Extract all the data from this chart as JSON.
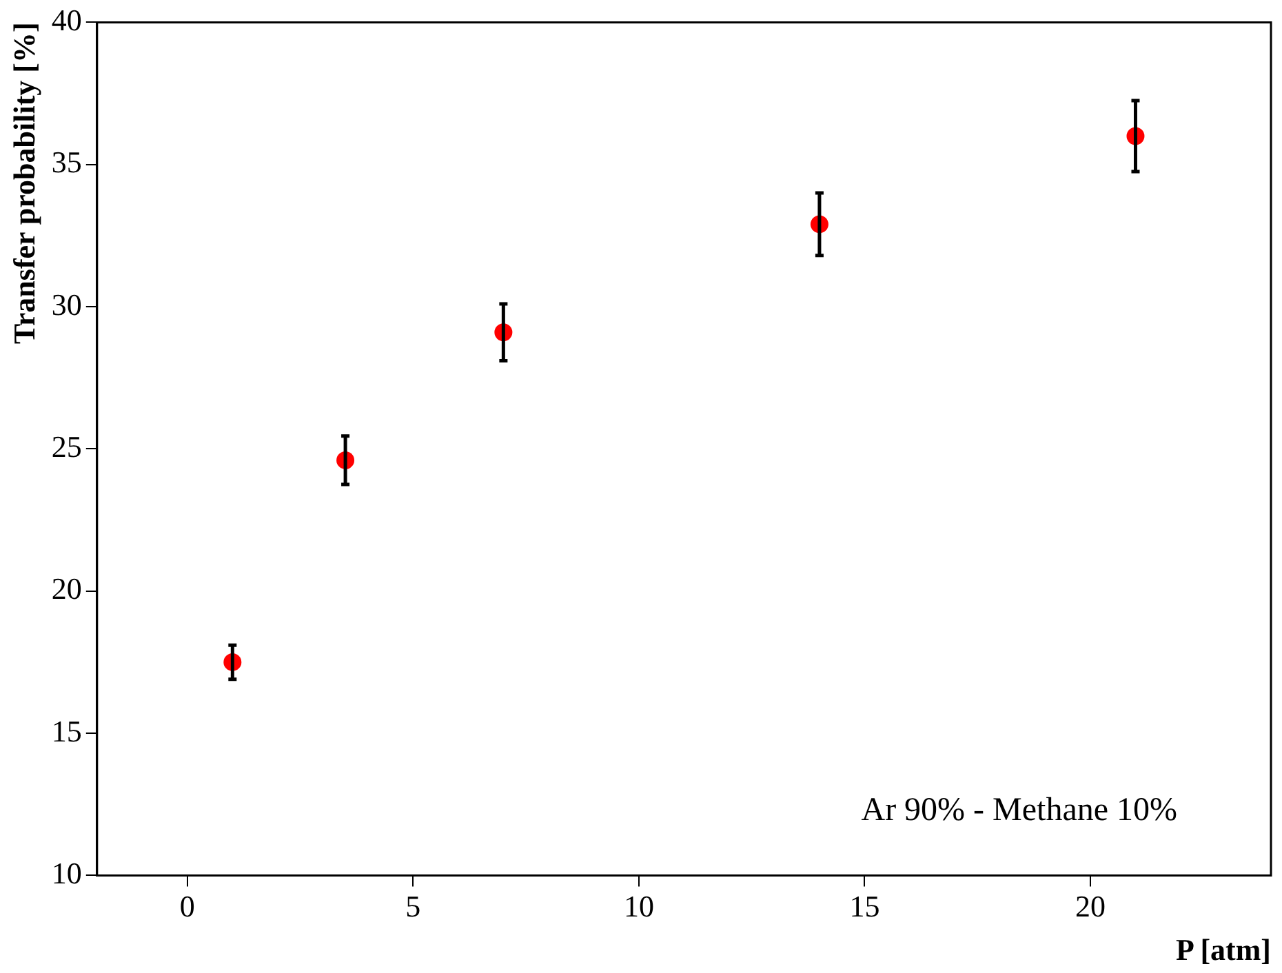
{
  "chart_data": {
    "type": "scatter",
    "xlabel": "P [atm]",
    "ylabel": "Transfer probability [%]",
    "x": [
      1,
      3.5,
      7,
      14,
      21
    ],
    "series": [
      {
        "color": "#ff0000",
        "values": [
          17.5,
          24.6,
          29.1,
          32.9,
          36.0
        ],
        "errors": [
          0.6,
          0.85,
          1.0,
          1.1,
          1.25
        ]
      }
    ],
    "xlim": [
      -2,
      24
    ],
    "xticks": [
      0,
      5,
      10,
      15,
      20
    ],
    "ylim": [
      10,
      40
    ],
    "yticks": [
      10,
      15,
      20,
      25,
      30,
      35,
      40
    ],
    "grid": false,
    "legend": false,
    "marker": "circle",
    "annotations": [
      {
        "text": "Ar 90% - Methane 10%"
      }
    ]
  }
}
